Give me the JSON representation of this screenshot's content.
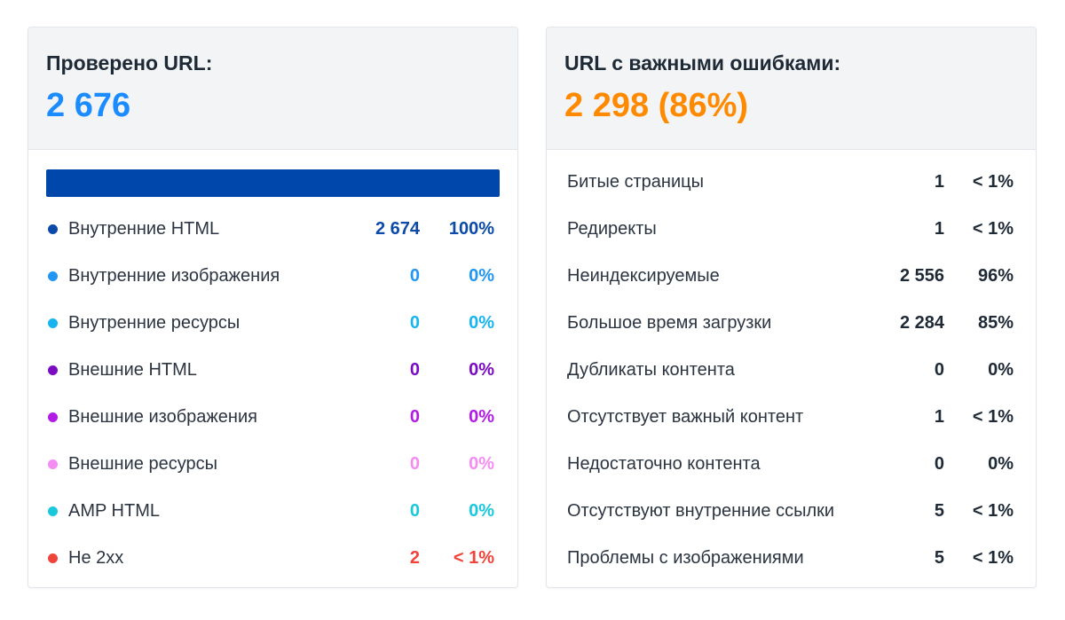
{
  "left_card": {
    "title": "Проверено URL:",
    "value": "2 676",
    "value_color": "#1a8cff",
    "progress": {
      "fraction": 1.0,
      "color": "#0047ab"
    },
    "rows": [
      {
        "label": "Внутренние HTML",
        "count": "2 674",
        "pct": "100%",
        "color": "#0b4aa8"
      },
      {
        "label": "Внутренние изображения",
        "count": "0",
        "pct": "0%",
        "color": "#2196f3"
      },
      {
        "label": "Внутренние ресурсы",
        "count": "0",
        "pct": "0%",
        "color": "#17b4f0"
      },
      {
        "label": "Внешние HTML",
        "count": "0",
        "pct": "0%",
        "color": "#7a0bc0"
      },
      {
        "label": "Внешние изображения",
        "count": "0",
        "pct": "0%",
        "color": "#b21ae6"
      },
      {
        "label": "Внешние ресурсы",
        "count": "0",
        "pct": "0%",
        "color": "#f48cf4"
      },
      {
        "label": "AMP HTML",
        "count": "0",
        "pct": "0%",
        "color": "#1ac8dc"
      },
      {
        "label": "Не 2xx",
        "count": "2",
        "pct": "< 1%",
        "color": "#f0433a"
      }
    ]
  },
  "right_card": {
    "title": "URL с важными ошибками:",
    "value": "2 298 (86%)",
    "value_color": "#ff8a00",
    "rows": [
      {
        "label": "Битые страницы",
        "count": "1",
        "pct": "< 1%"
      },
      {
        "label": "Редиректы",
        "count": "1",
        "pct": "< 1%"
      },
      {
        "label": "Неиндексируемые",
        "count": "2 556",
        "pct": "96%"
      },
      {
        "label": "Большое время загрузки",
        "count": "2 284",
        "pct": "85%"
      },
      {
        "label": "Дубликаты контента",
        "count": "0",
        "pct": "0%"
      },
      {
        "label": "Отсутствует важный контент",
        "count": "1",
        "pct": "< 1%"
      },
      {
        "label": "Недостаточно контента",
        "count": "0",
        "pct": "0%"
      },
      {
        "label": "Отсутствуют внутренние ссылки",
        "count": "5",
        "pct": "< 1%"
      },
      {
        "label": "Проблемы с изображениями",
        "count": "5",
        "pct": "< 1%"
      }
    ]
  }
}
